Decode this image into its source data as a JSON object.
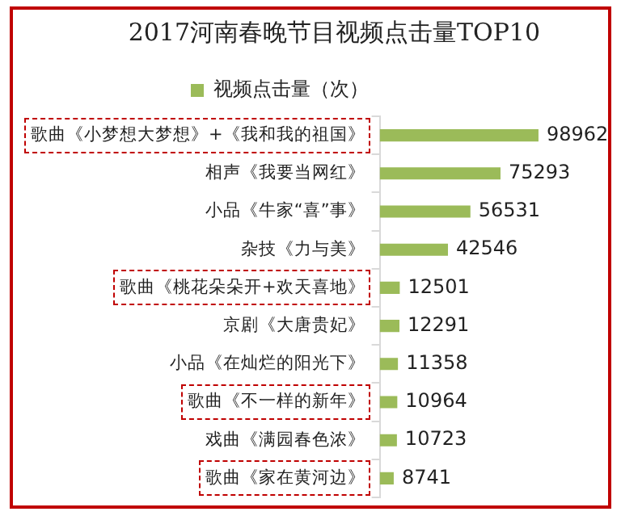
{
  "chart_data": {
    "type": "bar",
    "orientation": "horizontal",
    "title": "2017河南春晚节目视频点击量TOP10",
    "categories": [
      "歌曲《小梦想大梦想》+《我和我的祖国》",
      "相声《我要当网红》",
      "小品《牛家“喜”事》",
      "杂技《力与美》",
      "歌曲《桃花朵朵开+欢天喜地》",
      "京剧《大唐贵妃》",
      "小品《在灿烂的阳光下》",
      "歌曲《不一样的新年》",
      "戏曲《满园春色浓》",
      "歌曲《家在黄河边》"
    ],
    "series": [
      {
        "name": "视频点击量（次）",
        "color": "#9bbb59",
        "values": [
          98962,
          75293,
          56531,
          42546,
          12501,
          12291,
          11358,
          10964,
          10723,
          8741
        ]
      }
    ],
    "data_labels": true,
    "legend": "top",
    "grid": false
  }
}
